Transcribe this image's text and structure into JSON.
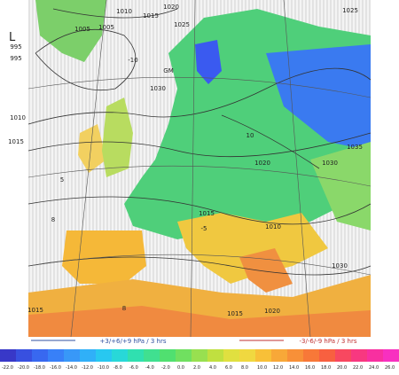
{
  "map": {
    "pressure_labels": [
      "1010",
      "1015",
      "1020",
      "1025",
      "1025",
      "1005",
      "995",
      "995",
      "1030",
      "1010",
      "1015",
      "1035",
      "1030",
      "1020",
      "1015",
      "1010",
      "1030",
      "1015",
      "1015",
      "1020",
      "1005"
    ],
    "low_label": "L",
    "other_labels": [
      "-10",
      "GM",
      "-5",
      "10",
      "5",
      "8",
      "8"
    ]
  },
  "legend": {
    "rising": "+3/+6/+9 hPa / 3 hrs",
    "falling": "-3/-6/-9 hPa / 3 hrs"
  },
  "color_scale": {
    "labels": [
      "-22.0",
      "-20.0",
      "-18.0",
      "-16.0",
      "-14.0",
      "-12.0",
      "-10.0",
      "-8.0",
      "-6.0",
      "-4.0",
      "-2.0",
      "0.0",
      "2.0",
      "4.0",
      "6.0",
      "8.0",
      "10.0",
      "12.0",
      "14.0",
      "16.0",
      "18.0",
      "20.0",
      "22.0",
      "24.0",
      "26.0"
    ]
  }
}
